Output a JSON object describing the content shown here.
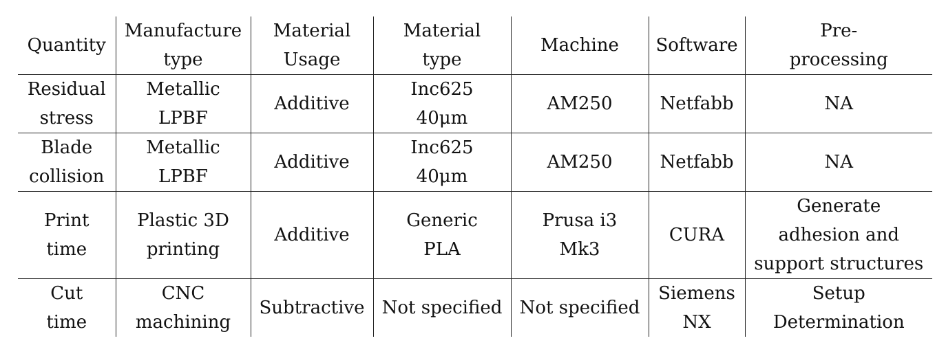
{
  "table": {
    "headers": [
      [
        "Quantity"
      ],
      [
        "Manufacture",
        "type"
      ],
      [
        "Material",
        "Usage"
      ],
      [
        "Material",
        "type"
      ],
      [
        "Machine"
      ],
      [
        "Software"
      ],
      [
        "Pre-",
        "processing"
      ]
    ],
    "rows": [
      {
        "quantity": [
          "Residual",
          "stress"
        ],
        "manufacture_type": [
          "Metallic",
          "LPBF"
        ],
        "material_usage": [
          "Additive"
        ],
        "material_type": [
          "Inc625",
          "40μm"
        ],
        "machine": [
          "AM250"
        ],
        "software": [
          "Netfabb"
        ],
        "preprocessing": [
          "NA"
        ]
      },
      {
        "quantity": [
          "Blade",
          "collision"
        ],
        "manufacture_type": [
          "Metallic",
          "LPBF"
        ],
        "material_usage": [
          "Additive"
        ],
        "material_type": [
          "Inc625",
          "40μm"
        ],
        "machine": [
          "AM250"
        ],
        "software": [
          "Netfabb"
        ],
        "preprocessing": [
          "NA"
        ]
      },
      {
        "quantity": [
          "Print",
          "time"
        ],
        "manufacture_type": [
          "Plastic 3D",
          "printing"
        ],
        "material_usage": [
          "Additive"
        ],
        "material_type": [
          "Generic",
          "PLA"
        ],
        "machine": [
          "Prusa i3",
          "Mk3"
        ],
        "software": [
          "CURA"
        ],
        "preprocessing": [
          "Generate",
          "adhesion and",
          "support structures"
        ]
      },
      {
        "quantity": [
          "Cut",
          "time"
        ],
        "manufacture_type": [
          "CNC",
          "machining"
        ],
        "material_usage": [
          "Subtractive"
        ],
        "material_type": [
          "Not specified"
        ],
        "machine": [
          "Not specified"
        ],
        "software": [
          "Siemens",
          "NX"
        ],
        "preprocessing": [
          "Setup",
          "Determination"
        ]
      }
    ]
  }
}
